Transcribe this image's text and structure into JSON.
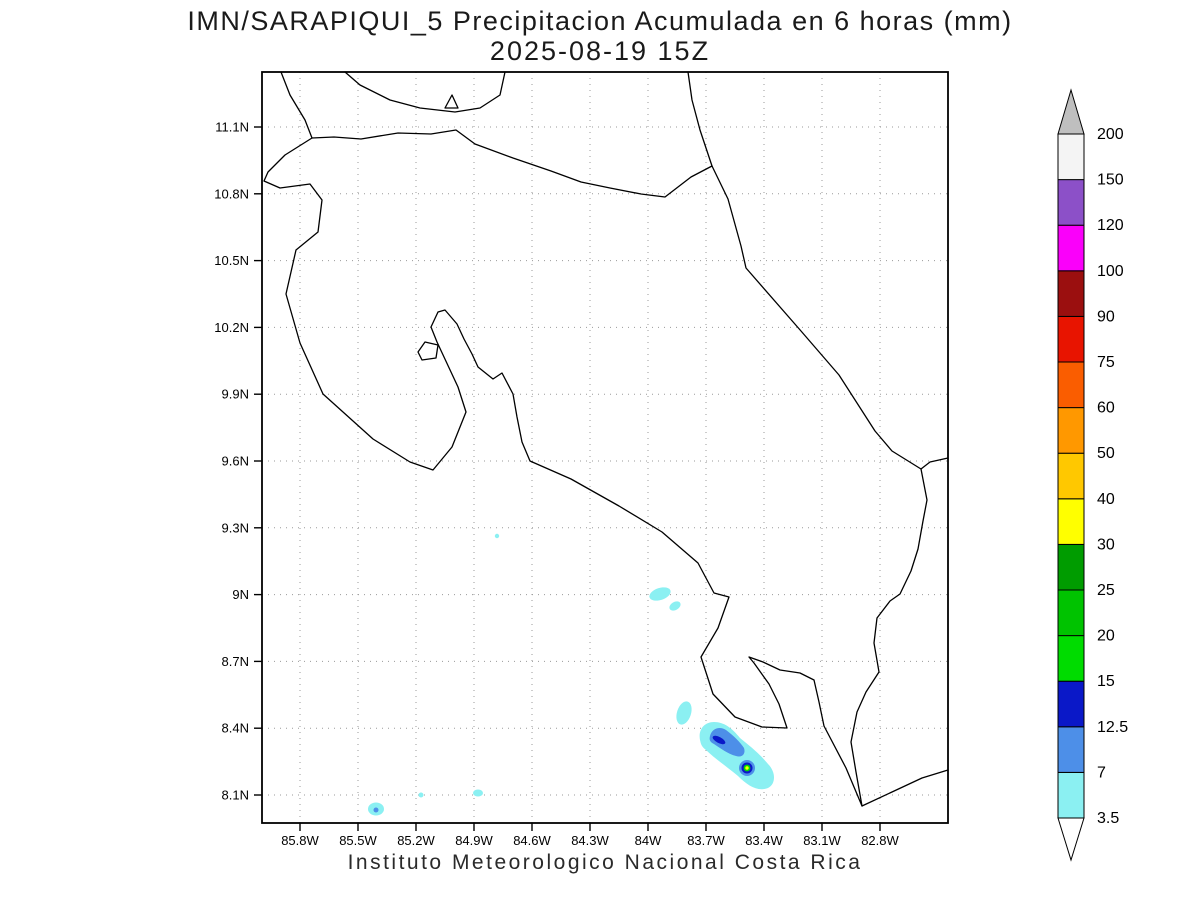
{
  "title": {
    "line1": "IMN/SARAPIQUI_5 Precipitacion Acumulada en 6 horas (mm)",
    "line2": "2025-08-19 15Z"
  },
  "caption": "Instituto Meteorologico Nacional Costa Rica",
  "map": {
    "lat_ticks": [
      {
        "label": "11.1N",
        "value": 11.1
      },
      {
        "label": "10.8N",
        "value": 10.8
      },
      {
        "label": "10.5N",
        "value": 10.5
      },
      {
        "label": "10.2N",
        "value": 10.2
      },
      {
        "label": "9.9N",
        "value": 9.9
      },
      {
        "label": "9.6N",
        "value": 9.6
      },
      {
        "label": "9.3N",
        "value": 9.3
      },
      {
        "label": "9N",
        "value": 9.0
      },
      {
        "label": "8.7N",
        "value": 8.7
      },
      {
        "label": "8.4N",
        "value": 8.4
      },
      {
        "label": "8.1N",
        "value": 8.1
      }
    ],
    "lon_ticks": [
      {
        "label": "85.8W",
        "value": 85.8
      },
      {
        "label": "85.5W",
        "value": 85.5
      },
      {
        "label": "85.2W",
        "value": 85.2
      },
      {
        "label": "84.9W",
        "value": 84.9
      },
      {
        "label": "84.6W",
        "value": 84.6
      },
      {
        "label": "84.3W",
        "value": 84.3
      },
      {
        "label": "84W",
        "value": 84.0
      },
      {
        "label": "83.7W",
        "value": 83.7
      },
      {
        "label": "83.4W",
        "value": 83.4
      },
      {
        "label": "83.1W",
        "value": 83.1
      },
      {
        "label": "82.8W",
        "value": 82.8
      }
    ],
    "grid_style": "dotted"
  },
  "colorbar": {
    "labels_bottom_to_top": [
      "3.5",
      "7",
      "12.5",
      "15",
      "20",
      "25",
      "30",
      "40",
      "50",
      "60",
      "75",
      "90",
      "100",
      "120",
      "150",
      "200"
    ],
    "segment_colors_bottom_to_top": [
      "#8bf0f2",
      "#4d8fe8",
      "#0a18c8",
      "#00dc00",
      "#00c300",
      "#009c00",
      "#ffff00",
      "#ffc800",
      "#ff9800",
      "#fa5d00",
      "#e81400",
      "#9b0f0f",
      "#fa00fa",
      "#8c50c8",
      "#f4f4f4"
    ],
    "over_color": "#bfbfbf",
    "under_color": "#ffffff"
  },
  "chart_data": {
    "type": "heatmap",
    "title": "IMN/SARAPIQUI_5 Precipitacion Acumulada en 6 horas (mm)",
    "datetime": "2025-08-19 15Z",
    "variable": "Precipitacion Acumulada en 6 horas",
    "units": "mm",
    "region": "Costa Rica",
    "source_label": "Instituto Meteorologico Nacional Costa Rica",
    "x_axis": {
      "type": "longitude_deg_west",
      "ticks": [
        85.8,
        85.5,
        85.2,
        84.9,
        84.6,
        84.3,
        84.0,
        83.7,
        83.4,
        83.1,
        82.8
      ],
      "range": [
        86.0,
        82.45
      ]
    },
    "y_axis": {
      "type": "latitude_deg_north",
      "ticks": [
        11.1,
        10.8,
        10.5,
        10.2,
        9.9,
        9.6,
        9.3,
        9.0,
        8.7,
        8.4,
        8.1
      ],
      "range": [
        7.97,
        11.35
      ]
    },
    "contour_levels_mm": [
      3.5,
      7,
      12.5,
      15,
      20,
      25,
      30,
      40,
      50,
      60,
      75,
      90,
      100,
      120,
      150,
      200
    ],
    "grid": "dotted graticule every 0.3 degrees",
    "legend_position": "right vertical colorbar with over/under arrows",
    "precip_cells": [
      {
        "name": "speck-9.3N-84.8W",
        "approx_lat_n": 9.26,
        "approx_lon_w": 84.78,
        "max_mm_bin": "3.5-7"
      },
      {
        "name": "cell-9N-83.9W",
        "approx_lat_n": 9.0,
        "approx_lon_w": 83.92,
        "max_mm_bin": "3.5-7"
      },
      {
        "name": "cell-8.47N-83.8W",
        "approx_lat_n": 8.47,
        "approx_lon_w": 83.82,
        "max_mm_bin": "3.5-7"
      },
      {
        "name": "main-cell-osa-8.3N-83.5W",
        "approx_lat_n": 8.28,
        "approx_lon_w": 83.55,
        "max_mm_bin": "30-40",
        "structure": "elongated NW-SE band; embedded 7-15 mm cores; bullseye maximum 30-40 mm near 8.23N 83.49W"
      },
      {
        "name": "speck-8.05N-85.4W",
        "approx_lat_n": 8.03,
        "approx_lon_w": 85.41,
        "max_mm_bin": "7-12.5"
      },
      {
        "name": "speck-8.1N-85.2W",
        "approx_lat_n": 8.1,
        "approx_lon_w": 85.17,
        "max_mm_bin": "3.5-7"
      },
      {
        "name": "speck-8.11N-84.9W",
        "approx_lat_n": 8.11,
        "approx_lon_w": 84.88,
        "max_mm_bin": "3.5-7"
      }
    ]
  }
}
